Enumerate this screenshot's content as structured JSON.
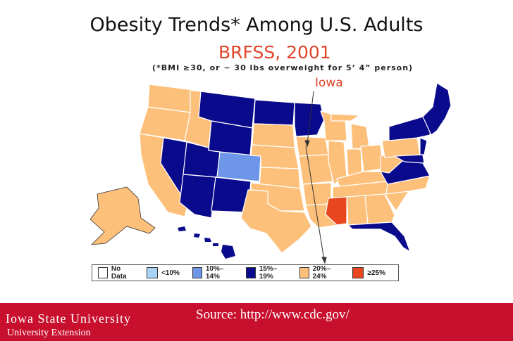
{
  "title": "Obesity Trends* Among U.S. Adults",
  "subtitle": "BRFSS, 2001",
  "note": "(*BMI ≥30, or ~ 30 lbs overweight for 5’ 4” person)",
  "callout": "Iowa",
  "colors": {
    "no_data": "#ffffff",
    "lt10": "#a9d3f5",
    "c10_14": "#6e96e8",
    "c15_19": "#0a0a8c",
    "c20_24": "#fdc07a",
    "ge25": "#e8461e",
    "border": "#ffffff",
    "accent": "#e0442a",
    "footer": "#c8102e"
  },
  "legend": [
    {
      "label": "No Data",
      "color": "#ffffff"
    },
    {
      "label": "<10%",
      "color": "#a9d3f5"
    },
    {
      "label": "10%–14%",
      "color": "#6e96e8"
    },
    {
      "label": "15%–19%",
      "color": "#0a0a8c"
    },
    {
      "label": "20%–24%",
      "color": "#fdc07a"
    },
    {
      "label": "≥25%",
      "color": "#e8461e"
    }
  ],
  "footer": {
    "university": "Iowa State University",
    "extension": "University Extension",
    "source": "Source: http://www.cdc.gov/"
  }
}
